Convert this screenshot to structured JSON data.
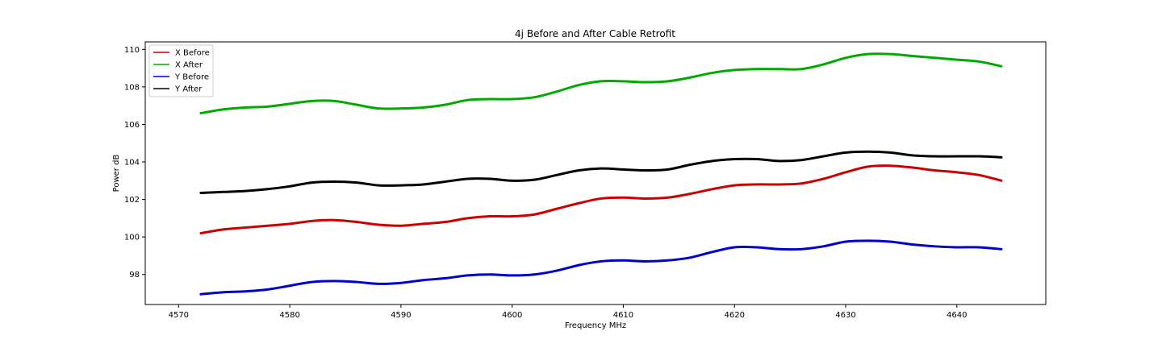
{
  "chart_data": {
    "type": "line",
    "title": "4j Before and After Cable Retrofit",
    "xlabel": "Frequency MHz",
    "ylabel": "Power dB",
    "xlim": [
      4567,
      4648
    ],
    "ylim": [
      96.4,
      110.4
    ],
    "xticks": [
      4570,
      4580,
      4590,
      4600,
      4610,
      4620,
      4630,
      4640
    ],
    "yticks": [
      98,
      100,
      102,
      104,
      106,
      108,
      110
    ],
    "grid": false,
    "legend_position": "top-left",
    "x": [
      4572,
      4574,
      4576,
      4578,
      4580,
      4582,
      4584,
      4586,
      4588,
      4590,
      4592,
      4594,
      4596,
      4598,
      4600,
      4602,
      4604,
      4606,
      4608,
      4610,
      4612,
      4614,
      4616,
      4618,
      4620,
      4622,
      4624,
      4626,
      4628,
      4630,
      4632,
      4634,
      4636,
      4638,
      4640,
      4642,
      4644
    ],
    "series": [
      {
        "name": "X Before",
        "color": "#cc0000",
        "values": [
          100.2,
          100.4,
          100.5,
          100.6,
          100.7,
          100.85,
          100.9,
          100.8,
          100.65,
          100.6,
          100.7,
          100.8,
          101.0,
          101.1,
          101.1,
          101.2,
          101.5,
          101.8,
          102.05,
          102.1,
          102.05,
          102.1,
          102.3,
          102.55,
          102.75,
          102.8,
          102.8,
          102.85,
          103.1,
          103.45,
          103.75,
          103.8,
          103.7,
          103.55,
          103.45,
          103.3,
          103.0
        ]
      },
      {
        "name": "X After",
        "color": "#00aa00",
        "values": [
          106.6,
          106.8,
          106.9,
          106.95,
          107.1,
          107.25,
          107.25,
          107.05,
          106.85,
          106.85,
          106.9,
          107.05,
          107.3,
          107.35,
          107.35,
          107.45,
          107.75,
          108.1,
          108.3,
          108.3,
          108.25,
          108.3,
          108.5,
          108.75,
          108.9,
          108.95,
          108.95,
          108.95,
          109.2,
          109.55,
          109.75,
          109.75,
          109.65,
          109.55,
          109.45,
          109.35,
          109.1
        ]
      },
      {
        "name": "Y Before",
        "color": "#0000cc",
        "values": [
          96.95,
          97.05,
          97.1,
          97.2,
          97.4,
          97.6,
          97.65,
          97.6,
          97.5,
          97.55,
          97.7,
          97.8,
          97.95,
          98.0,
          97.95,
          98.0,
          98.2,
          98.5,
          98.7,
          98.75,
          98.7,
          98.75,
          98.9,
          99.2,
          99.45,
          99.45,
          99.35,
          99.35,
          99.5,
          99.75,
          99.8,
          99.75,
          99.6,
          99.5,
          99.45,
          99.45,
          99.35
        ]
      },
      {
        "name": "Y After",
        "color": "#000000",
        "values": [
          102.35,
          102.4,
          102.45,
          102.55,
          102.7,
          102.9,
          102.95,
          102.9,
          102.75,
          102.75,
          102.8,
          102.95,
          103.1,
          103.1,
          103.0,
          103.05,
          103.3,
          103.55,
          103.65,
          103.6,
          103.55,
          103.6,
          103.85,
          104.05,
          104.15,
          104.15,
          104.05,
          104.1,
          104.3,
          104.5,
          104.55,
          104.5,
          104.35,
          104.3,
          104.3,
          104.3,
          104.25
        ]
      }
    ]
  }
}
